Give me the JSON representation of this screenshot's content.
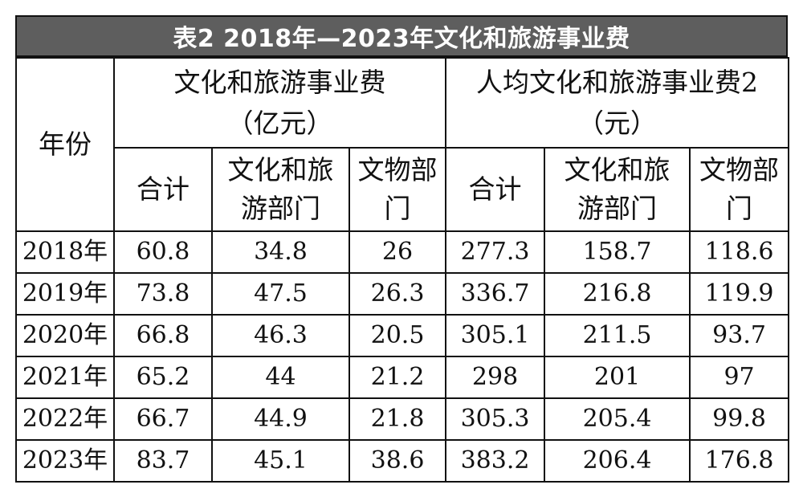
{
  "title": "表2  2018年—2023年文化和旅游事业费",
  "headers": {
    "year": "年份",
    "group1_line1": "文化和旅游事业费",
    "group1_line2": "（亿元）",
    "group2_line1": "人均文化和旅游事业费2",
    "group2_line2": "（元）",
    "sub_total": "合计",
    "sub_culture_line1": "文化和旅",
    "sub_culture_line2": "游部门",
    "sub_relics_line1": "文物部",
    "sub_relics_line2": "门"
  },
  "rows": [
    {
      "year": "2018年",
      "values": [
        "60.8",
        "34.8",
        "26",
        "277.3",
        "158.7",
        "118.6"
      ]
    },
    {
      "year": "2019年",
      "values": [
        "73.8",
        "47.5",
        "26.3",
        "336.7",
        "216.8",
        "119.9"
      ]
    },
    {
      "year": "2020年",
      "values": [
        "66.8",
        "46.3",
        "20.5",
        "305.1",
        "211.5",
        "93.7"
      ]
    },
    {
      "year": "2021年",
      "values": [
        "65.2",
        "44",
        "21.2",
        "298",
        "201",
        "97"
      ]
    },
    {
      "year": "2022年",
      "values": [
        "66.7",
        "44.9",
        "21.8",
        "305.3",
        "205.4",
        "99.8"
      ]
    },
    {
      "year": "2023年",
      "values": [
        "83.7",
        "45.1",
        "38.6",
        "383.2",
        "206.4",
        "176.8"
      ]
    }
  ]
}
